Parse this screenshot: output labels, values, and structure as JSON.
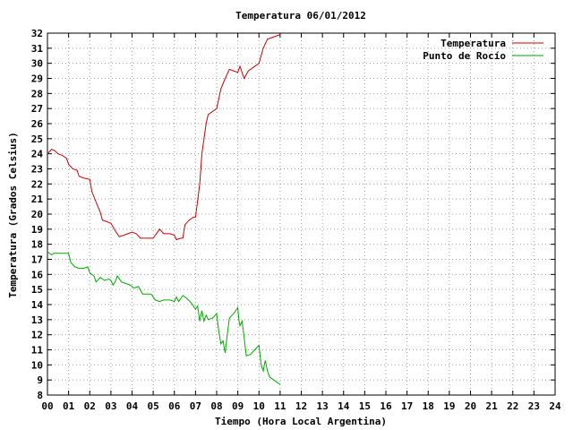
{
  "chart_data": {
    "type": "line",
    "title": "Temperatura 06/01/2012",
    "xlabel": "Tiempo (Hora Local Argentina)",
    "ylabel": "Temperatura (Grados Celsius)",
    "xlim": [
      0,
      24
    ],
    "ylim": [
      8,
      32
    ],
    "grid": true,
    "legend_position": "top-right",
    "x_tick_labels": [
      "00",
      "01",
      "02",
      "03",
      "04",
      "05",
      "06",
      "07",
      "08",
      "09",
      "10",
      "11",
      "12",
      "13",
      "14",
      "15",
      "16",
      "17",
      "18",
      "19",
      "20",
      "21",
      "22",
      "23",
      "24"
    ],
    "y_ticks": [
      8,
      9,
      10,
      11,
      12,
      13,
      14,
      15,
      16,
      17,
      18,
      19,
      20,
      21,
      22,
      23,
      24,
      25,
      26,
      27,
      28,
      29,
      30,
      31,
      32
    ],
    "series": [
      {
        "name": "Temperatura",
        "color": "#cc0000",
        "points": [
          [
            0.0,
            24.0
          ],
          [
            0.2,
            24.3
          ],
          [
            0.35,
            24.2
          ],
          [
            0.5,
            24.0
          ],
          [
            0.7,
            23.9
          ],
          [
            0.9,
            23.7
          ],
          [
            1.0,
            23.3
          ],
          [
            1.2,
            23.0
          ],
          [
            1.4,
            22.9
          ],
          [
            1.5,
            22.5
          ],
          [
            1.7,
            22.4
          ],
          [
            2.0,
            22.3
          ],
          [
            2.1,
            21.5
          ],
          [
            2.3,
            20.8
          ],
          [
            2.5,
            20.1
          ],
          [
            2.6,
            19.6
          ],
          [
            2.8,
            19.5
          ],
          [
            3.0,
            19.4
          ],
          [
            3.2,
            18.9
          ],
          [
            3.4,
            18.5
          ],
          [
            3.6,
            18.6
          ],
          [
            3.8,
            18.7
          ],
          [
            4.0,
            18.8
          ],
          [
            4.2,
            18.7
          ],
          [
            4.4,
            18.4
          ],
          [
            4.7,
            18.4
          ],
          [
            5.0,
            18.4
          ],
          [
            5.2,
            18.8
          ],
          [
            5.3,
            19.0
          ],
          [
            5.5,
            18.7
          ],
          [
            5.8,
            18.7
          ],
          [
            6.0,
            18.6
          ],
          [
            6.1,
            18.3
          ],
          [
            6.3,
            18.4
          ],
          [
            6.4,
            18.4
          ],
          [
            6.5,
            19.3
          ],
          [
            6.7,
            19.6
          ],
          [
            6.9,
            19.8
          ],
          [
            7.0,
            19.8
          ],
          [
            7.2,
            22.0
          ],
          [
            7.3,
            24.0
          ],
          [
            7.5,
            26.0
          ],
          [
            7.6,
            26.6
          ],
          [
            7.8,
            26.8
          ],
          [
            8.0,
            27.0
          ],
          [
            8.2,
            28.3
          ],
          [
            8.4,
            29.0
          ],
          [
            8.6,
            29.6
          ],
          [
            8.8,
            29.5
          ],
          [
            9.0,
            29.4
          ],
          [
            9.1,
            29.8
          ],
          [
            9.3,
            29.0
          ],
          [
            9.5,
            29.5
          ],
          [
            9.7,
            29.7
          ],
          [
            10.0,
            30.0
          ],
          [
            10.2,
            31.0
          ],
          [
            10.4,
            31.6
          ],
          [
            10.6,
            31.7
          ],
          [
            10.8,
            31.8
          ],
          [
            11.0,
            31.9
          ]
        ]
      },
      {
        "name": "Punto de Rocío",
        "color": "#00aa00",
        "points": [
          [
            0.0,
            17.5
          ],
          [
            0.2,
            17.3
          ],
          [
            0.3,
            17.4
          ],
          [
            0.5,
            17.4
          ],
          [
            0.8,
            17.4
          ],
          [
            1.0,
            17.4
          ],
          [
            1.1,
            16.8
          ],
          [
            1.3,
            16.5
          ],
          [
            1.5,
            16.4
          ],
          [
            1.7,
            16.4
          ],
          [
            1.9,
            16.5
          ],
          [
            2.0,
            16.1
          ],
          [
            2.2,
            15.9
          ],
          [
            2.3,
            15.5
          ],
          [
            2.5,
            15.8
          ],
          [
            2.7,
            15.6
          ],
          [
            2.9,
            15.7
          ],
          [
            3.0,
            15.6
          ],
          [
            3.1,
            15.3
          ],
          [
            3.2,
            15.5
          ],
          [
            3.3,
            15.9
          ],
          [
            3.5,
            15.5
          ],
          [
            3.7,
            15.4
          ],
          [
            3.9,
            15.3
          ],
          [
            4.1,
            15.1
          ],
          [
            4.3,
            15.2
          ],
          [
            4.5,
            14.7
          ],
          [
            4.7,
            14.7
          ],
          [
            4.9,
            14.7
          ],
          [
            5.1,
            14.3
          ],
          [
            5.3,
            14.2
          ],
          [
            5.5,
            14.3
          ],
          [
            5.8,
            14.3
          ],
          [
            6.0,
            14.2
          ],
          [
            6.1,
            14.5
          ],
          [
            6.2,
            14.2
          ],
          [
            6.4,
            14.6
          ],
          [
            6.6,
            14.4
          ],
          [
            6.8,
            14.1
          ],
          [
            7.0,
            13.7
          ],
          [
            7.1,
            13.9
          ],
          [
            7.2,
            12.9
          ],
          [
            7.3,
            13.6
          ],
          [
            7.4,
            12.9
          ],
          [
            7.5,
            13.3
          ],
          [
            7.6,
            13.0
          ],
          [
            7.8,
            13.1
          ],
          [
            8.0,
            13.4
          ],
          [
            8.1,
            12.2
          ],
          [
            8.2,
            11.4
          ],
          [
            8.3,
            11.6
          ],
          [
            8.4,
            10.8
          ],
          [
            8.5,
            12.0
          ],
          [
            8.6,
            13.1
          ],
          [
            8.8,
            13.4
          ],
          [
            9.0,
            13.8
          ],
          [
            9.05,
            13.0
          ],
          [
            9.1,
            12.6
          ],
          [
            9.2,
            12.9
          ],
          [
            9.3,
            11.8
          ],
          [
            9.4,
            10.6
          ],
          [
            9.6,
            10.7
          ],
          [
            9.8,
            11.0
          ],
          [
            10.0,
            11.3
          ],
          [
            10.1,
            10.0
          ],
          [
            10.2,
            9.6
          ],
          [
            10.3,
            10.3
          ],
          [
            10.4,
            9.6
          ],
          [
            10.5,
            9.2
          ],
          [
            10.7,
            9.0
          ],
          [
            10.9,
            8.8
          ],
          [
            11.0,
            8.7
          ]
        ]
      }
    ]
  }
}
